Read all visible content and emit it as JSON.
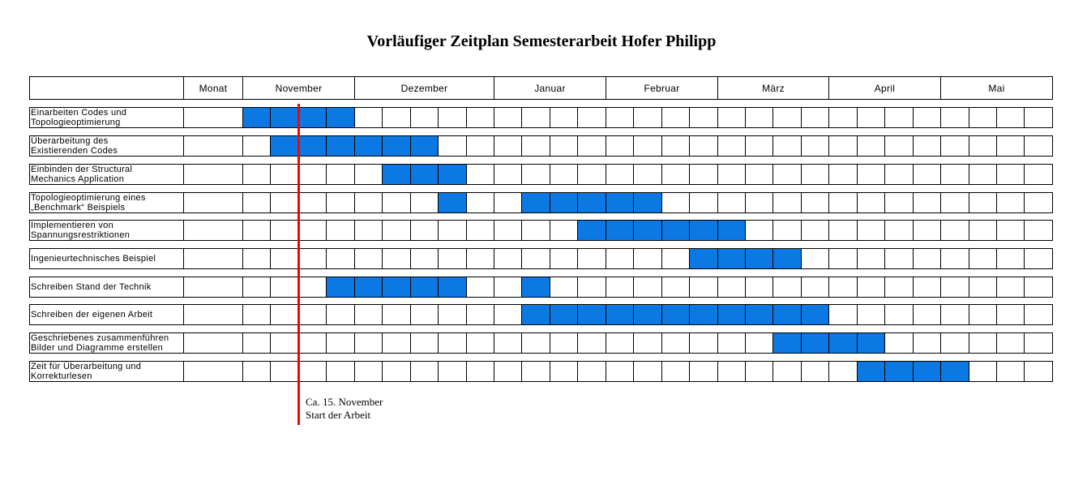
{
  "title": "Vorläufiger Zeitplan Semesterarbeit Hofer Philipp",
  "header": {
    "empty": "",
    "monat": "Monat",
    "months": [
      "November",
      "Dezember",
      "Januar",
      "Februar",
      "März",
      "April",
      "Mai"
    ]
  },
  "tasks": [
    {
      "label": "Einarbeiten Codes und\nTopologieoptimierung",
      "weeks": [
        1,
        2,
        3,
        4
      ]
    },
    {
      "label": " Überarbeitung des\nExistierenden Codes",
      "weeks": [
        2,
        3,
        4,
        5,
        6,
        7
      ]
    },
    {
      "label": "Einbinden der Structural\nMechanics Application",
      "weeks": [
        6,
        7,
        8
      ]
    },
    {
      "label": "Topologieoptimierung eines\n„Benchmark“ Beispiels",
      "weeks": [
        8,
        11,
        12,
        13,
        14,
        15
      ]
    },
    {
      "label": "Implementieren von\nSpannungsrestriktionen",
      "weeks": [
        13,
        14,
        15,
        16,
        17,
        18
      ]
    },
    {
      "label": "Ingenieurtechnisches Beispiel",
      "weeks": [
        17,
        18,
        19,
        20
      ]
    },
    {
      "label": "Schreiben Stand der Technik",
      "weeks": [
        4,
        5,
        6,
        7,
        8,
        11
      ]
    },
    {
      "label": "Schreiben der eigenen Arbeit",
      "weeks": [
        11,
        12,
        13,
        14,
        15,
        16,
        17,
        18,
        19,
        20,
        21
      ]
    },
    {
      "label": "Geschriebenes zusammenführen\nBilder und Diagramme erstellen",
      "weeks": [
        20,
        21,
        22,
        23
      ]
    },
    {
      "label": "Zeit für Überarbeitung und\nKorrekturlesen",
      "weeks": [
        23,
        24,
        25,
        26
      ]
    }
  ],
  "marker": {
    "label": "Ca. 15. November\nStart der Arbeit",
    "color": "#ff0000"
  },
  "colors": {
    "bar": "#0b78e3"
  }
}
